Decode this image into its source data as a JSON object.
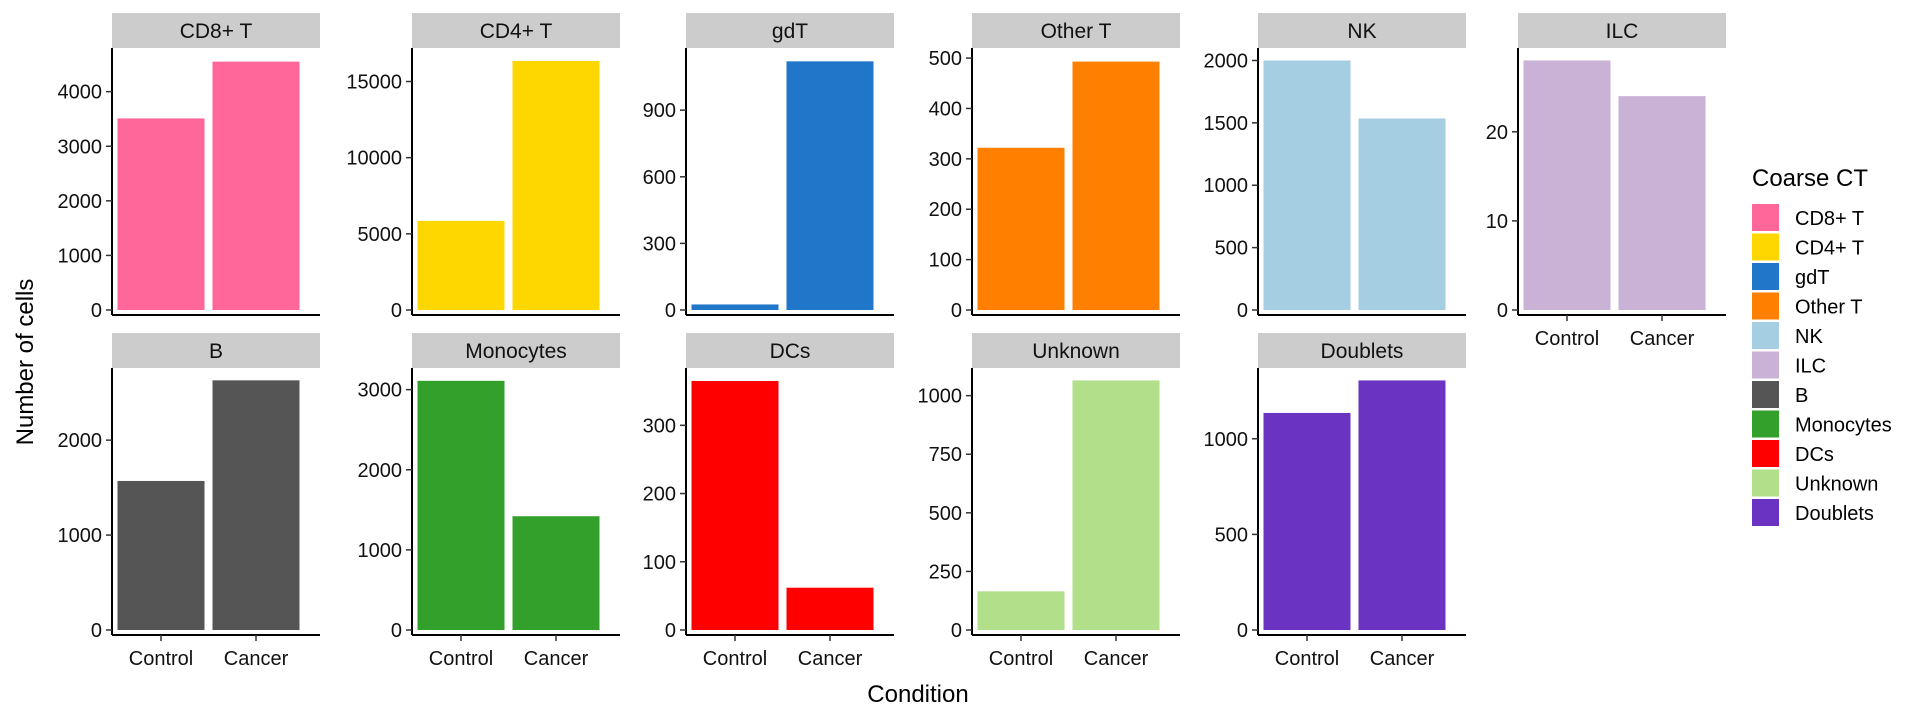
{
  "chart_data": {
    "type": "bar",
    "layout": "faceted",
    "xlabel": "Condition",
    "ylabel": "Number of cells",
    "categories": [
      "Control",
      "Cancer"
    ],
    "grid": false,
    "legend": {
      "title": "Coarse CT",
      "position": "right",
      "entries": [
        {
          "label": "CD8+ T",
          "color": "#FF6699"
        },
        {
          "label": "CD4+ T",
          "color": "#FFD700"
        },
        {
          "label": "gdT",
          "color": "#2077C9"
        },
        {
          "label": "Other T",
          "color": "#FF7F00"
        },
        {
          "label": "NK",
          "color": "#A6CEE3"
        },
        {
          "label": "ILC",
          "color": "#CAB2D6"
        },
        {
          "label": "B",
          "color": "#555555"
        },
        {
          "label": "Monocytes",
          "color": "#33A02C"
        },
        {
          "label": "DCs",
          "color": "#FF0000"
        },
        {
          "label": "Unknown",
          "color": "#B2DF8A"
        },
        {
          "label": "Doublets",
          "color": "#6A33C2"
        }
      ]
    },
    "facets": [
      {
        "name": "CD8+ T",
        "color": "#FF6699",
        "values": [
          3510,
          4550
        ],
        "ylim": [
          0,
          4800
        ],
        "ticks": [
          0,
          1000,
          2000,
          3000,
          4000
        ],
        "tick_labels": [
          "0",
          "1000",
          "2000",
          "3000",
          "4000"
        ]
      },
      {
        "name": "CD4+ T",
        "color": "#FFD700",
        "values": [
          5850,
          16350
        ],
        "ylim": [
          0,
          17200
        ],
        "ticks": [
          0,
          5000,
          10000,
          15000
        ],
        "tick_labels": [
          "0",
          "5000",
          "10000",
          "15000"
        ]
      },
      {
        "name": "gdT",
        "color": "#2077C9",
        "values": [
          25,
          1120
        ],
        "ylim": [
          0,
          1180
        ],
        "ticks": [
          0,
          300,
          600,
          900
        ],
        "tick_labels": [
          "0",
          "300",
          "600",
          "900"
        ]
      },
      {
        "name": "Other T",
        "color": "#FF7F00",
        "values": [
          322,
          493
        ],
        "ylim": [
          0,
          520
        ],
        "ticks": [
          0,
          100,
          200,
          300,
          400,
          500
        ],
        "tick_labels": [
          "0",
          "100",
          "200",
          "300",
          "400",
          "500"
        ]
      },
      {
        "name": "NK",
        "color": "#A6CEE3",
        "values": [
          2000,
          1535
        ],
        "ylim": [
          0,
          2100
        ],
        "ticks": [
          0,
          500,
          1000,
          1500,
          2000
        ],
        "tick_labels": [
          "0",
          "500",
          "1000",
          "1500",
          "2000"
        ]
      },
      {
        "name": "ILC",
        "color": "#CAB2D6",
        "values": [
          28,
          24
        ],
        "ylim": [
          0,
          29.4
        ],
        "ticks": [
          0,
          10,
          20
        ],
        "tick_labels": [
          "0",
          "10",
          "20"
        ]
      },
      {
        "name": "B",
        "color": "#555555",
        "values": [
          1570,
          2630
        ],
        "ylim": [
          0,
          2760
        ],
        "ticks": [
          0,
          1000,
          2000
        ],
        "tick_labels": [
          "0",
          "1000",
          "2000"
        ]
      },
      {
        "name": "Monocytes",
        "color": "#33A02C",
        "values": [
          3110,
          1420
        ],
        "ylim": [
          0,
          3270
        ],
        "ticks": [
          0,
          1000,
          2000,
          3000
        ],
        "tick_labels": [
          "0",
          "1000",
          "2000",
          "3000"
        ]
      },
      {
        "name": "DCs",
        "color": "#FF0000",
        "values": [
          365,
          62
        ],
        "ylim": [
          0,
          384
        ],
        "ticks": [
          0,
          100,
          200,
          300
        ],
        "tick_labels": [
          "0",
          "100",
          "200",
          "300"
        ]
      },
      {
        "name": "Unknown",
        "color": "#B2DF8A",
        "values": [
          165,
          1065
        ],
        "ylim": [
          0,
          1118
        ],
        "ticks": [
          0,
          250,
          500,
          750,
          1000
        ],
        "tick_labels": [
          "0",
          "250",
          "500",
          "750",
          "1000"
        ]
      },
      {
        "name": "Doublets",
        "color": "#6A33C2",
        "values": [
          1135,
          1305
        ],
        "ylim": [
          0,
          1370
        ],
        "ticks": [
          0,
          500,
          1000
        ],
        "tick_labels": [
          "0",
          "500",
          "1000"
        ]
      }
    ]
  }
}
